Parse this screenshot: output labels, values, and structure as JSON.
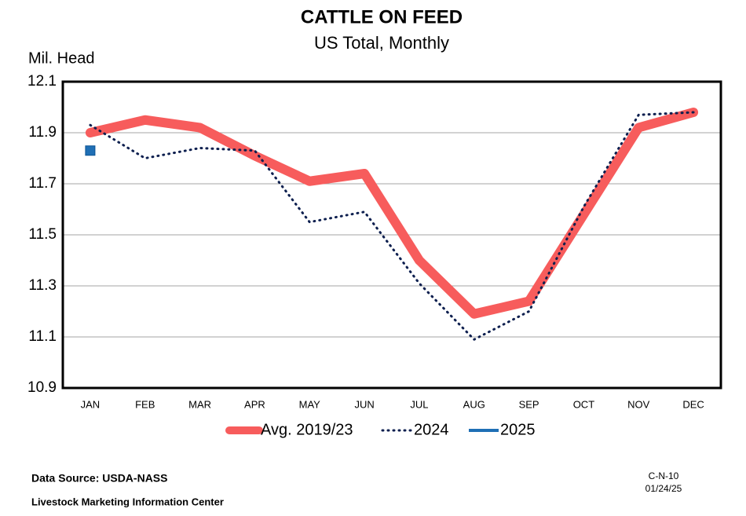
{
  "chart_data": {
    "type": "line",
    "title": "CATTLE ON FEED",
    "subtitle": "US Total, Monthly",
    "y_label": "Mil. Head",
    "categories": [
      "JAN",
      "FEB",
      "MAR",
      "APR",
      "MAY",
      "JUN",
      "JUL",
      "AUG",
      "SEP",
      "OCT",
      "NOV",
      "DEC"
    ],
    "series": [
      {
        "name": "Avg. 2019/23",
        "color": "#f75c5c",
        "style": "thick",
        "values": [
          11.9,
          11.95,
          11.92,
          11.81,
          11.71,
          11.74,
          11.4,
          11.19,
          11.24,
          11.58,
          11.92,
          11.98
        ]
      },
      {
        "name": "2024",
        "color": "#0d1f4f",
        "style": "dotted",
        "values": [
          11.93,
          11.8,
          11.84,
          11.83,
          11.55,
          11.59,
          11.31,
          11.09,
          11.2,
          11.61,
          11.97,
          11.98
        ]
      },
      {
        "name": "2025",
        "color": "#1f6fb5",
        "style": "marker",
        "values": [
          11.83,
          null,
          null,
          null,
          null,
          null,
          null,
          null,
          null,
          null,
          null,
          null
        ]
      }
    ],
    "ylim": [
      10.9,
      12.1
    ],
    "yticks": [
      10.9,
      11.1,
      11.3,
      11.5,
      11.7,
      11.9,
      12.1
    ],
    "grid": true,
    "legend": "bottom",
    "source": "Data Source:  USDA-NASS",
    "org": "Livestock Marketing Information Center",
    "code": "C-N-10",
    "date": "01/24/25"
  }
}
